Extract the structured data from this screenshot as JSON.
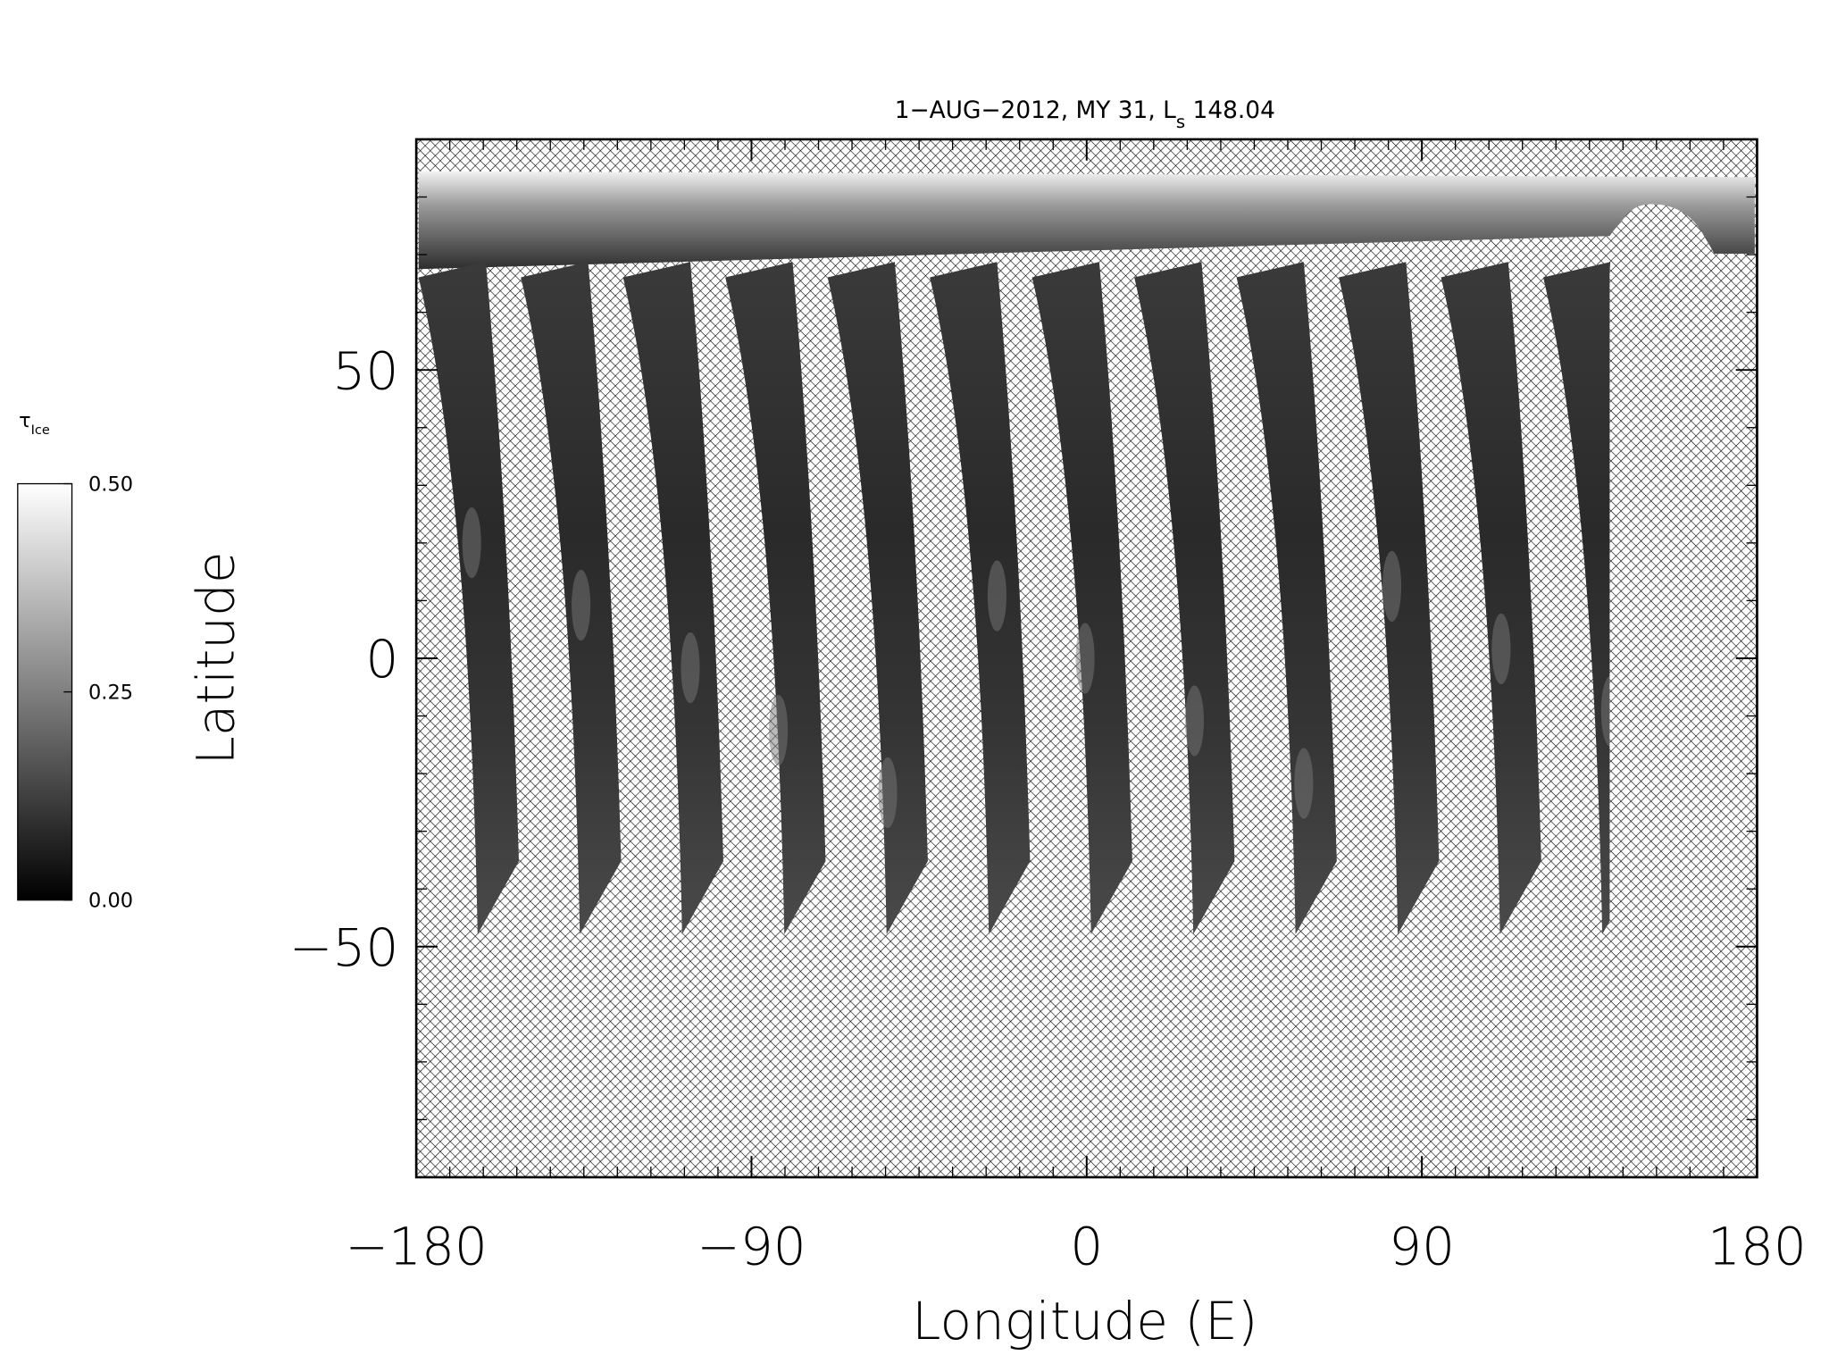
{
  "chart_data": {
    "type": "map",
    "title": [
      "1−AUG−2012, MY 31,  L",
      "s",
      " 148.04"
    ],
    "xlabel": "Longitude (E)",
    "ylabel": "Latitude",
    "xlim": [
      -180,
      180
    ],
    "ylim": [
      -90,
      90
    ],
    "xticks": [
      {
        "value": -180,
        "label": "−180"
      },
      {
        "value": -90,
        "label": "−90"
      },
      0,
      90,
      180
    ],
    "yticks": [
      {
        "value": -50,
        "label": "−50"
      },
      0,
      50
    ],
    "x_minor_interval": 9,
    "y_minor_interval": 10,
    "colorbar_label": [
      "τ",
      "Ice"
    ],
    "clim": [
      0,
      0.5
    ],
    "colorbar_ticks": [
      {
        "value": 0,
        "label": "0.00"
      },
      {
        "value": 0.25,
        "label": "0.25"
      },
      {
        "value": 0.5,
        "label": "0.50"
      }
    ]
  }
}
